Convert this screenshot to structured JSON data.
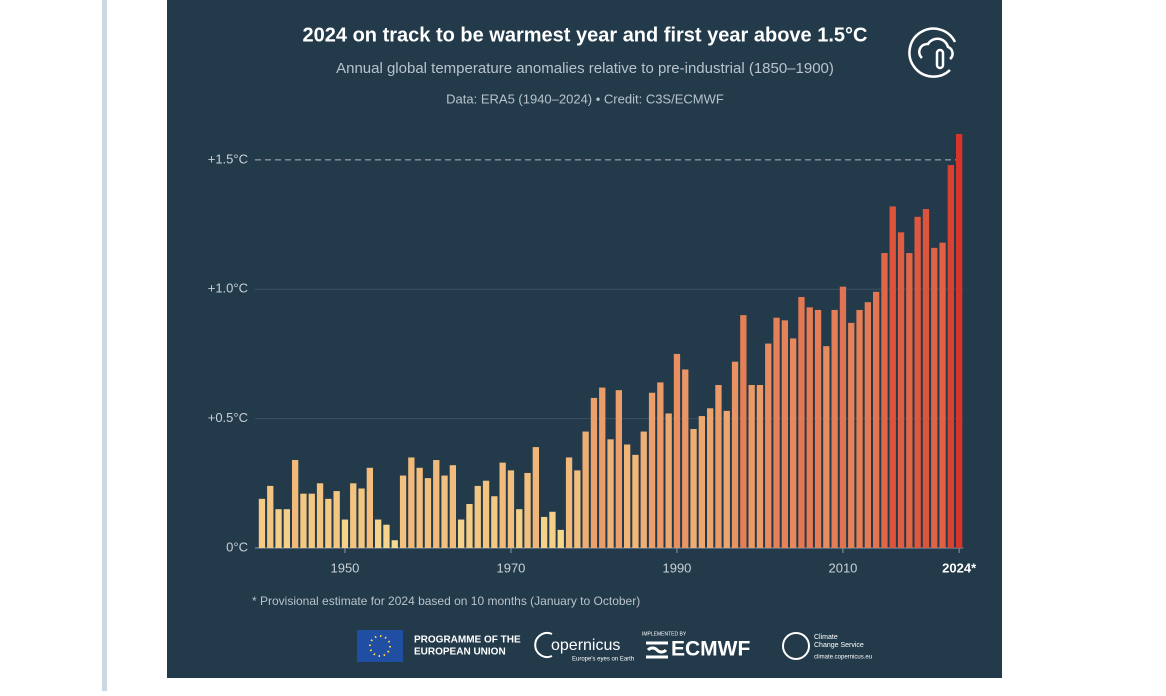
{
  "chart_data": {
    "type": "bar",
    "title": "2024 on track to be warmest year and first year above 1.5°C",
    "subtitle": "Annual global temperature anomalies relative to pre-industrial (1850–1900)",
    "source": "Data: ERA5 (1940–2024) • Credit: C3S/ECMWF",
    "footnote": "* Provisional estimate for 2024 based on 10 months (January to October)",
    "x": [
      1940,
      1941,
      1942,
      1943,
      1944,
      1945,
      1946,
      1947,
      1948,
      1949,
      1950,
      1951,
      1952,
      1953,
      1954,
      1955,
      1956,
      1957,
      1958,
      1959,
      1960,
      1961,
      1962,
      1963,
      1964,
      1965,
      1966,
      1967,
      1968,
      1969,
      1970,
      1971,
      1972,
      1973,
      1974,
      1975,
      1976,
      1977,
      1978,
      1979,
      1980,
      1981,
      1982,
      1983,
      1984,
      1985,
      1986,
      1987,
      1988,
      1989,
      1990,
      1991,
      1992,
      1993,
      1994,
      1995,
      1996,
      1997,
      1998,
      1999,
      2000,
      2001,
      2002,
      2003,
      2004,
      2005,
      2006,
      2007,
      2008,
      2009,
      2010,
      2011,
      2012,
      2013,
      2014,
      2015,
      2016,
      2017,
      2018,
      2019,
      2020,
      2021,
      2022,
      2023,
      2024
    ],
    "values": [
      0.19,
      0.24,
      0.15,
      0.15,
      0.34,
      0.21,
      0.21,
      0.25,
      0.19,
      0.22,
      0.11,
      0.25,
      0.23,
      0.31,
      0.11,
      0.09,
      0.03,
      0.28,
      0.35,
      0.31,
      0.27,
      0.34,
      0.28,
      0.32,
      0.11,
      0.17,
      0.24,
      0.26,
      0.2,
      0.33,
      0.3,
      0.15,
      0.29,
      0.39,
      0.12,
      0.14,
      0.07,
      0.35,
      0.3,
      0.45,
      0.58,
      0.62,
      0.42,
      0.61,
      0.4,
      0.36,
      0.45,
      0.6,
      0.64,
      0.52,
      0.75,
      0.69,
      0.46,
      0.51,
      0.54,
      0.63,
      0.53,
      0.72,
      0.9,
      0.63,
      0.63,
      0.79,
      0.89,
      0.88,
      0.81,
      0.97,
      0.93,
      0.92,
      0.78,
      0.92,
      1.01,
      0.87,
      0.92,
      0.95,
      0.99,
      1.14,
      1.32,
      1.22,
      1.14,
      1.28,
      1.31,
      1.16,
      1.18,
      1.48,
      1.6
    ],
    "color_scale": [
      "#f8de91",
      "#d7352a"
    ],
    "xlim": [
      1939.5,
      2024.5
    ],
    "xticks": [
      1950,
      1970,
      1990,
      2010,
      {
        "value": 2024,
        "label": "2024*"
      }
    ],
    "ylim": [
      0,
      1.6
    ],
    "yticks": [
      {
        "value": 0,
        "label": "0°C"
      },
      {
        "value": 0.5,
        "label": "+0.5°C"
      },
      {
        "value": 1.0,
        "label": "+1.0°C"
      },
      {
        "value": 1.5,
        "label": "+1.5°C"
      }
    ],
    "reference_line": 1.5,
    "grid": true
  },
  "logos": {
    "eu": [
      "PROGRAMME OF THE",
      "EUROPEAN UNION"
    ],
    "copernicus": "opernicus",
    "copernicus_tagline": "Europe's eyes on Earth",
    "implemented": "IMPLEMENTED BY",
    "ecmwf": "ECMWF",
    "c3s": [
      "Climate",
      "Change Service"
    ],
    "c3s_url": "climate.copernicus.eu"
  }
}
